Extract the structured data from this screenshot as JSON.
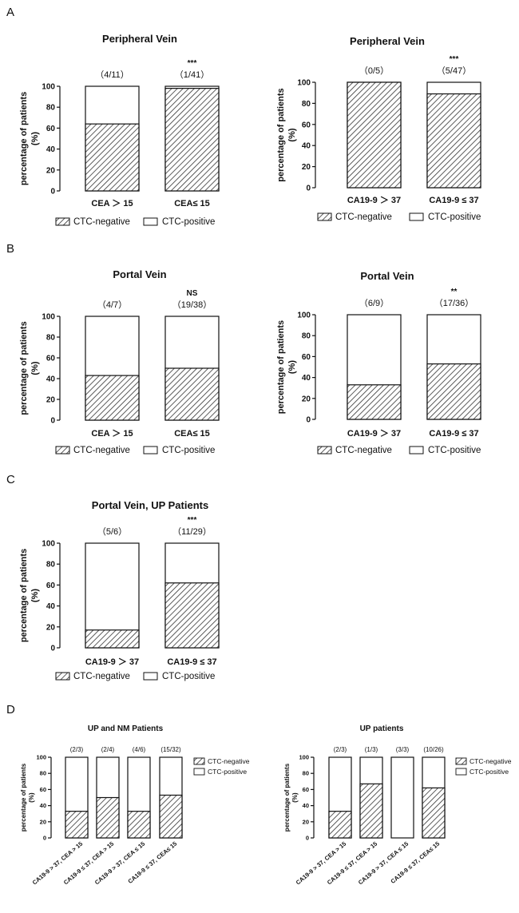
{
  "panel_letters": [
    "A",
    "B",
    "C",
    "D"
  ],
  "colors": {
    "hatch": "#333333",
    "bar_border": "#111111",
    "background": "#ffffff"
  },
  "legend_labels": {
    "negative": "CTC-negative",
    "positive": "CTC-positive"
  },
  "chart_data": [
    {
      "type": "bar",
      "stacked": true,
      "title": "Peripheral Vein",
      "ylabel_line1": "percentage of patients",
      "ylabel_line2": "(%)",
      "ylim": [
        0,
        100
      ],
      "yticks": [
        "0",
        "20",
        "40",
        "60",
        "80",
        "100"
      ],
      "categories": [
        "CEA ＞ 15",
        "CEA≤ 15"
      ],
      "bar_labels": [
        "（4/11）",
        "（1/41）"
      ],
      "significance": [
        "",
        "***"
      ],
      "series": [
        {
          "name": "CTC-negative",
          "values": [
            64,
            98
          ]
        },
        {
          "name": "CTC-positive",
          "values": [
            36,
            2
          ]
        }
      ]
    },
    {
      "type": "bar",
      "stacked": true,
      "title": "Peripheral Vein",
      "ylabel_line1": "percentage of patients",
      "ylabel_line2": "(%)",
      "ylim": [
        0,
        100
      ],
      "yticks": [
        "0",
        "20",
        "40",
        "60",
        "80",
        "100"
      ],
      "categories": [
        "CA19-9 ＞ 37",
        "CA19-9 ≤ 37"
      ],
      "bar_labels": [
        "（0/5）",
        "（5/47）"
      ],
      "significance": [
        "",
        "***"
      ],
      "series": [
        {
          "name": "CTC-negative",
          "values": [
            100,
            89
          ]
        },
        {
          "name": "CTC-positive",
          "values": [
            0,
            11
          ]
        }
      ]
    },
    {
      "type": "bar",
      "stacked": true,
      "title": "Portal Vein",
      "ylabel_line1": "percentage of patients",
      "ylabel_line2": "(%)",
      "ylim": [
        0,
        100
      ],
      "yticks": [
        "0",
        "20",
        "40",
        "60",
        "80",
        "100"
      ],
      "categories": [
        "CEA ＞ 15",
        "CEA≤ 15"
      ],
      "bar_labels": [
        "（4/7）",
        "（19/38）"
      ],
      "significance": [
        "",
        "NS"
      ],
      "series": [
        {
          "name": "CTC-negative",
          "values": [
            43,
            50
          ]
        },
        {
          "name": "CTC-positive",
          "values": [
            57,
            50
          ]
        }
      ]
    },
    {
      "type": "bar",
      "stacked": true,
      "title": "Portal Vein",
      "ylabel_line1": "percentage of patients",
      "ylabel_line2": "(%)",
      "ylim": [
        0,
        100
      ],
      "yticks": [
        "0",
        "20",
        "40",
        "60",
        "80",
        "100"
      ],
      "categories": [
        "CA19-9 ＞ 37",
        "CA19-9 ≤ 37"
      ],
      "bar_labels": [
        "（6/9）",
        "（17/36）"
      ],
      "significance": [
        "",
        "**"
      ],
      "series": [
        {
          "name": "CTC-negative",
          "values": [
            33,
            53
          ]
        },
        {
          "name": "CTC-positive",
          "values": [
            67,
            47
          ]
        }
      ]
    },
    {
      "type": "bar",
      "stacked": true,
      "title": "Portal Vein, UP Patients",
      "ylabel_line1": "percentage of patients",
      "ylabel_line2": "(%)",
      "ylim": [
        0,
        100
      ],
      "yticks": [
        "0",
        "20",
        "40",
        "60",
        "80",
        "100"
      ],
      "categories": [
        "CA19-9 ＞ 37",
        "CA19-9 ≤ 37"
      ],
      "bar_labels": [
        "（5/6）",
        "（11/29）"
      ],
      "significance": [
        "",
        "***"
      ],
      "series": [
        {
          "name": "CTC-negative",
          "values": [
            17,
            62
          ]
        },
        {
          "name": "CTC-positive",
          "values": [
            83,
            38
          ]
        }
      ]
    },
    {
      "type": "bar",
      "stacked": true,
      "title": "UP and NM Patients",
      "ylabel_line1": "percentage of patients",
      "ylabel_line2": "(%)",
      "ylim": [
        0,
        100
      ],
      "yticks": [
        "0",
        "20",
        "40",
        "60",
        "80",
        "100"
      ],
      "categories": [
        "CA19-9 > 37, CEA > 15",
        "CA19-9 ≤  37, CEA > 15",
        "CA19-9 > 37, CEA ≤  15",
        "CA19-9 ≤ 37, CEA≤  15"
      ],
      "bar_labels": [
        "(2/3)",
        "(2/4)",
        "(4/6)",
        "(15/32)"
      ],
      "significance": [
        "",
        "",
        "",
        ""
      ],
      "series": [
        {
          "name": "CTC-negative",
          "values": [
            33,
            50,
            33,
            53
          ]
        },
        {
          "name": "CTC-positive",
          "values": [
            67,
            50,
            67,
            47
          ]
        }
      ]
    },
    {
      "type": "bar",
      "stacked": true,
      "title": "UP patients",
      "ylabel_line1": "percentage of patients",
      "ylabel_line2": "(%)",
      "ylim": [
        0,
        100
      ],
      "yticks": [
        "0",
        "20",
        "40",
        "60",
        "80",
        "100"
      ],
      "categories": [
        "CA19-9 > 37, CEA > 15",
        "CA19-9 ≤  37, CEA > 15",
        "CA19-9 > 37, CEA ≤  15",
        "CA19-9 ≤ 37, CEA≤  15"
      ],
      "bar_labels": [
        "(2/3)",
        "(1/3)",
        "(3/3)",
        "(10/26)"
      ],
      "significance": [
        "",
        "",
        "",
        ""
      ],
      "series": [
        {
          "name": "CTC-negative",
          "values": [
            33,
            67,
            0,
            62
          ]
        },
        {
          "name": "CTC-positive",
          "values": [
            67,
            33,
            100,
            38
          ]
        }
      ]
    }
  ]
}
